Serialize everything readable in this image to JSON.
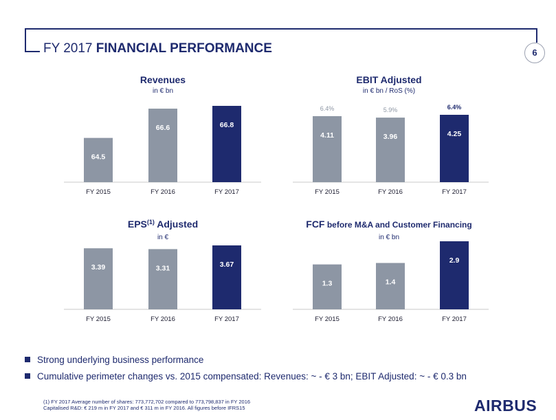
{
  "header": {
    "title_prefix": "FY 2017",
    "title_bold": "FINANCIAL PERFORMANCE",
    "page_number": "6"
  },
  "colors": {
    "brand": "#1e2a6e",
    "highlight_bar": "#1e2a6e",
    "prior_bar": "#8d96a4",
    "axis": "#c8c8c8"
  },
  "chart_data": [
    {
      "type": "bar",
      "title": "Revenues",
      "subtitle": "in € bn",
      "categories": [
        "FY 2015",
        "FY 2016",
        "FY 2017"
      ],
      "values": [
        64.5,
        66.6,
        66.8
      ],
      "value_labels": [
        "64.5",
        "66.6",
        "66.8"
      ],
      "top_labels": [],
      "highlight_index": 2
    },
    {
      "type": "bar",
      "title": "EBIT Adjusted",
      "subtitle": "in € bn / RoS (%)",
      "categories": [
        "FY 2015",
        "FY 2016",
        "FY 2017"
      ],
      "values": [
        4.11,
        3.96,
        4.25
      ],
      "value_labels": [
        "4.11",
        "3.96",
        "4.25"
      ],
      "top_labels": [
        "6.4%",
        "5.9%",
        "6.4%"
      ],
      "highlight_index": 2
    },
    {
      "type": "bar",
      "title": "EPS",
      "title_sup": "(1)",
      "title_after": " Adjusted",
      "subtitle": "in €",
      "categories": [
        "FY 2015",
        "FY 2016",
        "FY 2017"
      ],
      "values": [
        3.39,
        3.31,
        3.67
      ],
      "value_labels": [
        "3.39",
        "3.31",
        "3.67"
      ],
      "top_labels": [],
      "highlight_index": 2
    },
    {
      "type": "bar",
      "title": "FCF",
      "title_after": " before M&A and Customer Financing",
      "subtitle": "in € bn",
      "categories": [
        "FY 2015",
        "FY 2016",
        "FY 2017"
      ],
      "values": [
        1.3,
        1.4,
        2.9
      ],
      "value_labels": [
        "1.3",
        "1.4",
        "2.9"
      ],
      "top_labels": [],
      "highlight_index": 2
    }
  ],
  "bullets": [
    "Strong underlying business performance",
    "Cumulative perimeter changes vs. 2015 compensated: Revenues:  ~ - € 3 bn; EBIT Adjusted: ~ - € 0.3 bn"
  ],
  "footnotes": {
    "line1": "(1) FY 2017 Average number of shares: 773,772,702 compared to 773,798,837 in FY 2016",
    "line2": "Capitalised R&D: € 219 m in FY 2017 and € 311 m in FY 2016. All figures before IFRS15"
  },
  "logo": "AIRBUS"
}
